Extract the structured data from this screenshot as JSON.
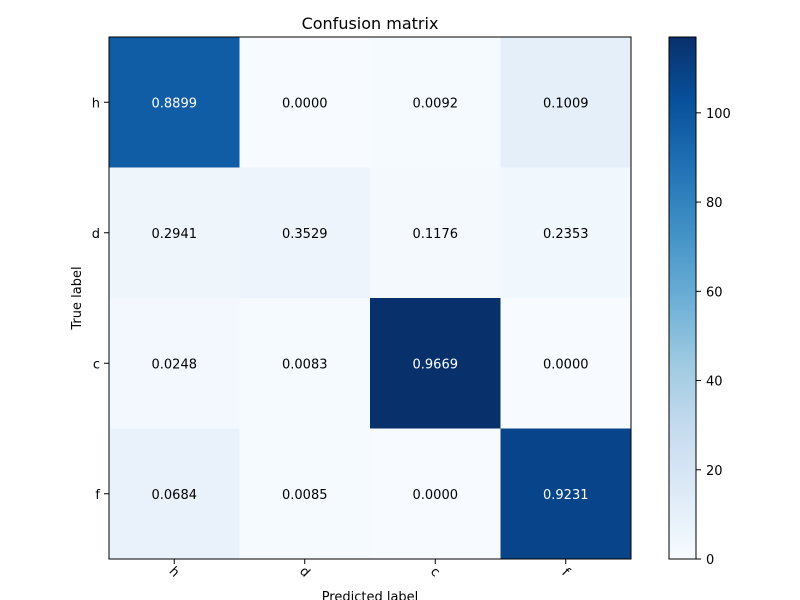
{
  "chart_data": {
    "type": "heatmap",
    "title": "Confusion matrix",
    "xlabel": "Predicted label",
    "ylabel": "True label",
    "x_categories": [
      "h",
      "d",
      "c",
      "f"
    ],
    "y_categories": [
      "h",
      "d",
      "c",
      "f"
    ],
    "values": [
      [
        0.8899,
        0.0,
        0.0092,
        0.1009
      ],
      [
        0.2941,
        0.3529,
        0.1176,
        0.2353
      ],
      [
        0.0248,
        0.0083,
        0.9669,
        0.0
      ],
      [
        0.0684,
        0.0085,
        0.0,
        0.9231
      ]
    ],
    "cell_labels": [
      [
        "0.8899",
        "0.0000",
        "0.0092",
        "0.1009"
      ],
      [
        "0.2941",
        "0.3529",
        "0.1176",
        "0.2353"
      ],
      [
        "0.0248",
        "0.0083",
        "0.9669",
        "0.0000"
      ],
      [
        "0.0684",
        "0.0085",
        "0.0000",
        "0.9231"
      ]
    ],
    "color_values": [
      [
        97,
        0,
        1,
        11
      ],
      [
        5,
        6,
        2,
        4
      ],
      [
        3,
        1,
        117,
        0
      ],
      [
        8,
        1,
        0,
        108
      ]
    ],
    "colorbar": {
      "range": [
        0,
        117
      ],
      "ticks": [
        0,
        20,
        40,
        60,
        80,
        100
      ],
      "tick_labels": [
        "0",
        "20",
        "40",
        "60",
        "80",
        "100"
      ]
    },
    "colormap": "Blues",
    "colors": {
      "low": "#f7fbff",
      "high": "#08306b"
    },
    "text_color_dark": "#000000",
    "text_color_light": "#ffffff",
    "grid": false
  }
}
